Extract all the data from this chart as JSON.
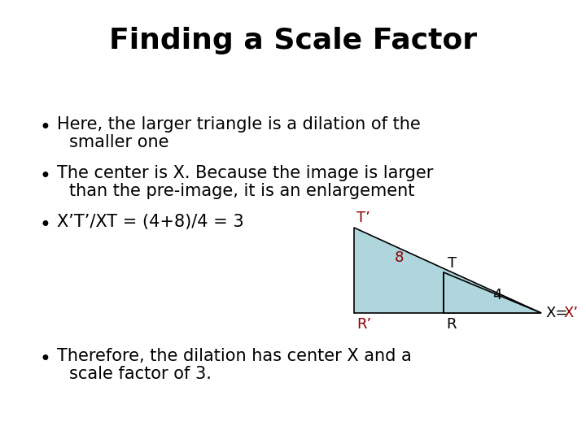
{
  "title": "Finding a Scale Factor",
  "title_fontsize": 26,
  "title_color": "#000000",
  "background_color": "#ffffff",
  "bullet1_line1": "Here, the larger triangle is a dilation of the",
  "bullet1_line2": "smaller one",
  "bullet2_line1": "The center is X. Because the image is larger",
  "bullet2_line2": "than the pre-image, it is an enlargement",
  "bullet3": "X’T’/XT = (4+8)/4 = 3",
  "bullet4_line1": "Therefore, the dilation has center X and a",
  "bullet4_line2": "scale factor of 3.",
  "bullet_fontsize": 15,
  "bullet_color": "#000000",
  "triangle_fill": "#aed6dc",
  "triangle_edge": "#000000",
  "dark_red": "#8b0000",
  "black": "#000000",
  "label_T_prime": "T’",
  "label_T": "T",
  "label_R_prime": "R’",
  "label_R": "R",
  "label_8": "8",
  "label_4": "4"
}
